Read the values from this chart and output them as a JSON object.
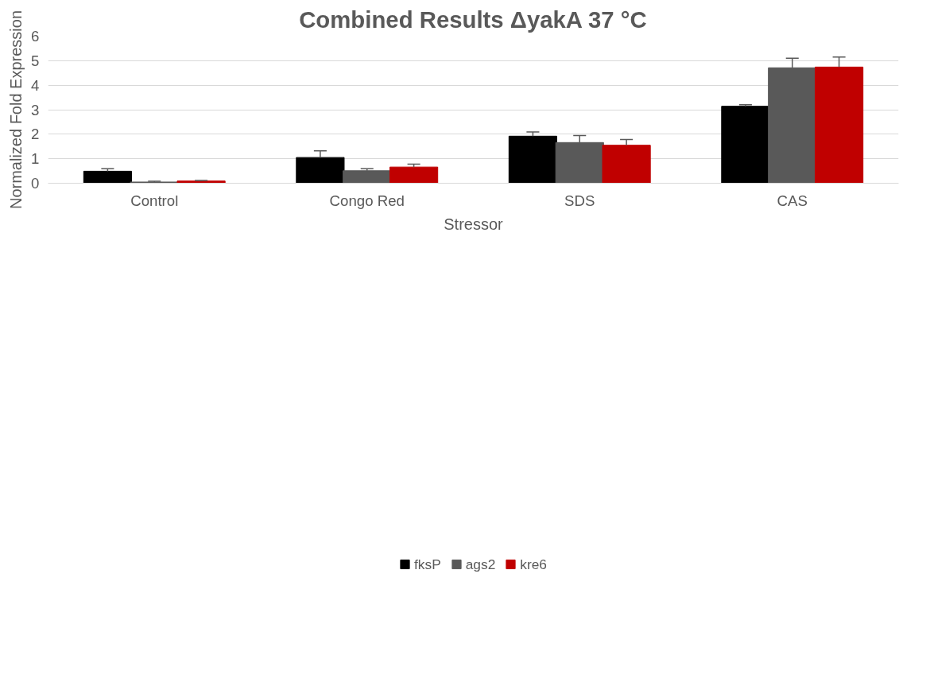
{
  "chart_data": {
    "type": "bar",
    "title": "Combined Results ΔyakA 37 °C",
    "xlabel": "Stressor",
    "ylabel": "Normalized Fold Expression",
    "categories": [
      "Control",
      "Congo Red",
      "SDS",
      "CAS"
    ],
    "series": [
      {
        "name": "fksP",
        "color": "#000000",
        "values": [
          0.49,
          1.05,
          1.92,
          3.14
        ],
        "errors": [
          [
            0.49,
            0.59
          ],
          [
            1.05,
            1.32
          ],
          [
            1.92,
            2.09
          ],
          [
            3.14,
            3.2
          ]
        ]
      },
      {
        "name": "ags2",
        "color": "#595959",
        "values": [
          0.05,
          0.51,
          1.66,
          4.71
        ],
        "errors": [
          [
            0.05,
            0.08
          ],
          [
            0.51,
            0.59
          ],
          [
            1.66,
            1.95
          ],
          [
            4.71,
            5.1
          ]
        ]
      },
      {
        "name": "kre6",
        "color": "#c00000",
        "values": [
          0.09,
          0.66,
          1.55,
          4.74
        ],
        "errors": [
          [
            0.09,
            0.11
          ],
          [
            0.66,
            0.78
          ],
          [
            1.55,
            1.78
          ],
          [
            4.74,
            5.15
          ]
        ]
      }
    ],
    "ylim": [
      0,
      6
    ],
    "yticks": [
      0,
      1,
      2,
      3,
      4,
      5,
      6
    ],
    "grid": "y",
    "legend": "bottom"
  }
}
